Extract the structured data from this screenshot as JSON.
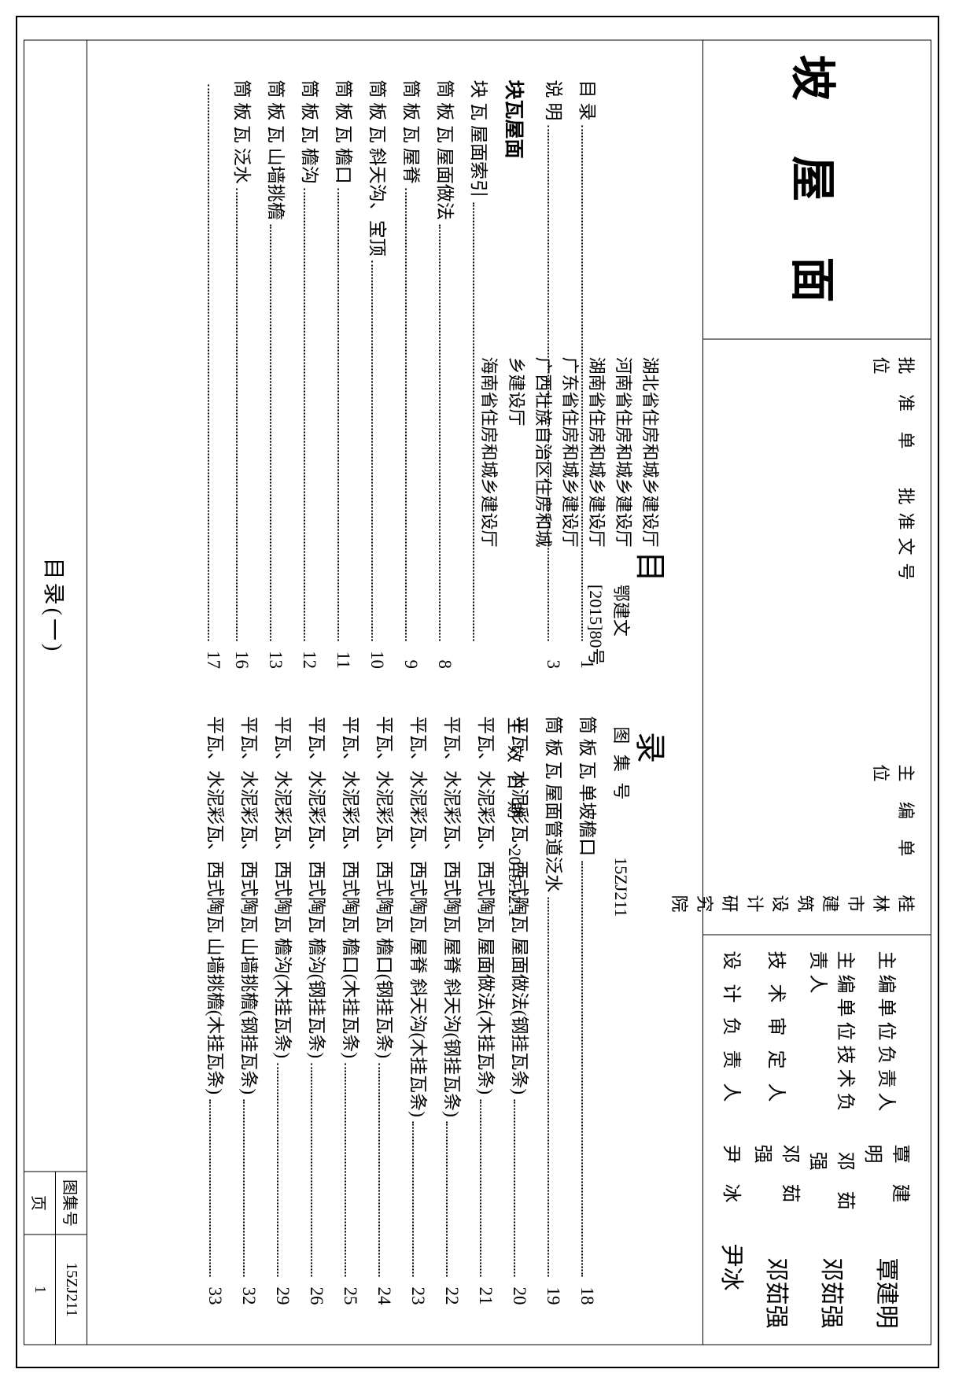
{
  "title": "坡 屋 面",
  "info": {
    "approval_header": "批 准 单 位",
    "approvers": [
      "湖北省住房和城乡建设厅",
      "河南省住房和城乡建设厅",
      "湖南省住房和城乡建设厅",
      "广东省住房和城乡建设厅",
      "广西壮族自治区住房和城乡建设厅",
      "海南省住房和城乡建设厅"
    ],
    "approval_doc_label": "批准文号",
    "approval_doc_value": "鄂建文[2015]80号",
    "editor_label": "主 编 单 位",
    "editor_value": "桂林市建筑设计研究院",
    "atlas_label": "图 集 号",
    "atlas_value": "15ZJ211",
    "effective_label": "生 效 日 期",
    "effective_value": "2015.12.1"
  },
  "signers": [
    {
      "role": "主编单位负责人",
      "name": "覃 建 明",
      "sig": "覃建明"
    },
    {
      "role": "主编单位技术负责人",
      "name": "邓 茹 强",
      "sig": "邓茹强"
    },
    {
      "role": "技 术 审 定 人",
      "name": "邓 茹 强",
      "sig": "邓茹强"
    },
    {
      "role": "设 计 负 责 人",
      "name": "尹    冰",
      "sig": "尹冰"
    }
  ],
  "toc_heading": "目  录",
  "section_head": "块瓦屋面",
  "left_top": [
    {
      "label": "目  录",
      "page": "1"
    },
    {
      "label": "说  明",
      "page": "3"
    }
  ],
  "left_items": [
    {
      "label": "块 瓦 屋面索引",
      "page": ""
    },
    {
      "label": "筒 板 瓦 屋面做法",
      "page": "8"
    },
    {
      "label": "筒 板 瓦 屋脊",
      "page": "9"
    },
    {
      "label": "筒 板 瓦 斜天沟、宝顶",
      "page": "10"
    },
    {
      "label": "筒 板 瓦 檐口",
      "page": "11"
    },
    {
      "label": "筒 板 瓦 檐沟",
      "page": "12"
    },
    {
      "label": "筒 板 瓦 山墙挑檐",
      "page": "13"
    },
    {
      "label": "筒 板 瓦 泛水",
      "page": "16"
    },
    {
      "label": "",
      "page": "17"
    }
  ],
  "right_items": [
    {
      "label": "筒 板 瓦 单坡檐口",
      "page": "18"
    },
    {
      "label": "筒 板 瓦 屋面管道泛水",
      "page": "19"
    },
    {
      "label": "平瓦、水泥彩瓦、西式陶瓦 屋面做法(钢挂瓦条)",
      "page": "20"
    },
    {
      "label": "平瓦、水泥彩瓦、西式陶瓦 屋面做法(木挂瓦条)",
      "page": "21"
    },
    {
      "label": "平瓦、水泥彩瓦、西式陶瓦 屋脊  斜天沟(钢挂瓦条)",
      "page": "22"
    },
    {
      "label": "平瓦、水泥彩瓦、西式陶瓦 屋脊  斜天沟(木挂瓦条)",
      "page": "23"
    },
    {
      "label": "平瓦、水泥彩瓦、西式陶瓦 檐口(钢挂瓦条)",
      "page": "24"
    },
    {
      "label": "平瓦、水泥彩瓦、西式陶瓦 檐口(木挂瓦条)",
      "page": "25"
    },
    {
      "label": "平瓦、水泥彩瓦、西式陶瓦 檐沟(钢挂瓦条)",
      "page": "26"
    },
    {
      "label": "平瓦、水泥彩瓦、西式陶瓦 檐沟(木挂瓦条)",
      "page": "29"
    },
    {
      "label": "平瓦、水泥彩瓦、西式陶瓦 山墙挑檐(钢挂瓦条)",
      "page": "32"
    },
    {
      "label": "平瓦、水泥彩瓦、西式陶瓦 山墙挑檐(木挂瓦条)",
      "page": "33"
    }
  ],
  "footer": {
    "title": "目录(一)",
    "atlas_label": "图集号",
    "atlas_value": "15ZJ211",
    "page_label": "页",
    "page_value": "1"
  }
}
